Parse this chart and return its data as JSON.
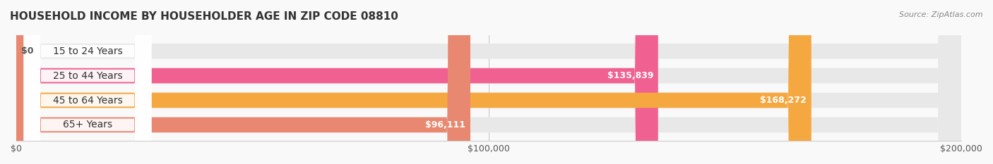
{
  "title": "HOUSEHOLD INCOME BY HOUSEHOLDER AGE IN ZIP CODE 08810",
  "source": "Source: ZipAtlas.com",
  "categories": [
    "15 to 24 Years",
    "25 to 44 Years",
    "45 to 64 Years",
    "65+ Years"
  ],
  "values": [
    0,
    135839,
    168272,
    96111
  ],
  "bar_colors": [
    "#a0a8d8",
    "#f06090",
    "#f5a840",
    "#e88870"
  ],
  "bar_bg_color": "#f0f0f0",
  "label_colors": [
    "#555555",
    "#ffffff",
    "#ffffff",
    "#555555"
  ],
  "value_labels": [
    "$0",
    "$135,839",
    "$168,272",
    "$96,111"
  ],
  "xlim": [
    0,
    200000
  ],
  "xticks": [
    0,
    100000,
    200000
  ],
  "xtick_labels": [
    "$0",
    "$100,000",
    "$200,000"
  ],
  "background_color": "#f9f9f9",
  "title_fontsize": 11,
  "label_fontsize": 10,
  "value_fontsize": 9
}
